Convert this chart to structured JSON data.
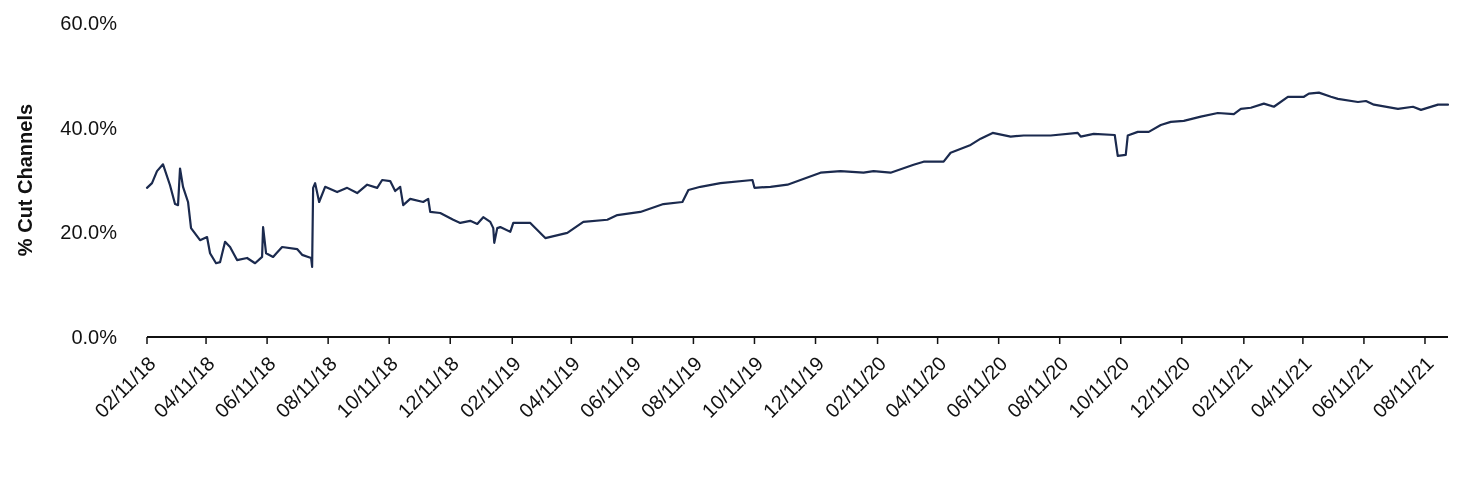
{
  "chart_data": {
    "type": "line",
    "ylabel": "% Cut Channels",
    "color": "#1b2a4e",
    "xlim": [
      "2018-02-11",
      "2021-09-03"
    ],
    "xticks": [
      {
        "value": "2018-02-11",
        "label": "02/11/18"
      },
      {
        "value": "2018-04-11",
        "label": "04/11/18"
      },
      {
        "value": "2018-06-11",
        "label": "06/11/18"
      },
      {
        "value": "2018-08-11",
        "label": "08/11/18"
      },
      {
        "value": "2018-10-11",
        "label": "10/11/18"
      },
      {
        "value": "2018-12-11",
        "label": "12/11/18"
      },
      {
        "value": "2019-02-11",
        "label": "02/11/19"
      },
      {
        "value": "2019-04-11",
        "label": "04/11/19"
      },
      {
        "value": "2019-06-11",
        "label": "06/11/19"
      },
      {
        "value": "2019-08-11",
        "label": "08/11/19"
      },
      {
        "value": "2019-10-11",
        "label": "10/11/19"
      },
      {
        "value": "2019-12-11",
        "label": "12/11/19"
      },
      {
        "value": "2020-02-11",
        "label": "02/11/20"
      },
      {
        "value": "2020-04-11",
        "label": "04/11/20"
      },
      {
        "value": "2020-06-11",
        "label": "06/11/20"
      },
      {
        "value": "2020-08-11",
        "label": "08/11/20"
      },
      {
        "value": "2020-10-11",
        "label": "10/11/20"
      },
      {
        "value": "2020-12-11",
        "label": "12/11/20"
      },
      {
        "value": "2021-02-11",
        "label": "02/11/21"
      },
      {
        "value": "2021-04-11",
        "label": "04/11/21"
      },
      {
        "value": "2021-06-11",
        "label": "06/11/21"
      },
      {
        "value": "2021-08-11",
        "label": "08/11/21"
      }
    ],
    "ylim": [
      0,
      60
    ],
    "yticks": [
      {
        "value": 0,
        "label": "0.0%"
      },
      {
        "value": 20,
        "label": "20.0%"
      },
      {
        "value": 40,
        "label": "40.0%"
      },
      {
        "value": 60,
        "label": "60.0%"
      }
    ],
    "grid": false,
    "legend": false,
    "marker": "none",
    "line_style": "solid",
    "x": [
      "2018-02-11",
      "2018-02-16",
      "2018-02-21",
      "2018-02-27",
      "2018-03-06",
      "2018-03-11",
      "2018-03-14",
      "2018-03-16",
      "2018-03-19",
      "2018-03-24",
      "2018-03-27",
      "2018-04-05",
      "2018-04-12",
      "2018-04-15",
      "2018-04-21",
      "2018-04-25",
      "2018-04-30",
      "2018-05-05",
      "2018-05-12",
      "2018-05-22",
      "2018-05-30",
      "2018-06-06",
      "2018-06-07",
      "2018-06-10",
      "2018-06-17",
      "2018-06-26",
      "2018-07-11",
      "2018-07-16",
      "2018-07-25",
      "2018-07-26",
      "2018-07-27",
      "2018-07-29",
      "2018-08-02",
      "2018-08-08",
      "2018-08-20",
      "2018-08-30",
      "2018-09-09",
      "2018-09-19",
      "2018-09-29",
      "2018-10-04",
      "2018-10-12",
      "2018-10-17",
      "2018-10-22",
      "2018-10-25",
      "2018-11-01",
      "2018-11-14",
      "2018-11-19",
      "2018-11-21",
      "2018-12-01",
      "2018-12-14",
      "2018-12-21",
      "2018-12-31",
      "2019-01-07",
      "2019-01-13",
      "2019-01-20",
      "2019-01-23",
      "2019-01-24",
      "2019-01-27",
      "2019-01-30",
      "2019-02-09",
      "2019-02-12",
      "2019-03-01",
      "2019-03-16",
      "2019-04-07",
      "2019-04-23",
      "2019-05-17",
      "2019-05-27",
      "2019-06-19",
      "2019-07-12",
      "2019-07-31",
      "2019-08-06",
      "2019-08-18",
      "2019-09-07",
      "2019-10-09",
      "2019-10-11",
      "2019-10-27",
      "2019-11-13",
      "2019-11-26",
      "2019-12-16",
      "2020-01-05",
      "2020-01-28",
      "2020-02-07",
      "2020-02-24",
      "2020-03-18",
      "2020-03-28",
      "2020-04-17",
      "2020-04-24",
      "2020-05-14",
      "2020-05-24",
      "2020-06-05",
      "2020-06-23",
      "2020-07-06",
      "2020-08-02",
      "2020-08-29",
      "2020-09-01",
      "2020-09-14",
      "2020-10-05",
      "2020-10-08",
      "2020-10-16",
      "2020-10-18",
      "2020-10-28",
      "2020-11-08",
      "2020-11-20",
      "2020-11-30",
      "2020-12-13",
      "2020-12-30",
      "2021-01-16",
      "2021-02-01",
      "2021-02-08",
      "2021-02-18",
      "2021-03-03",
      "2021-03-13",
      "2021-03-27",
      "2021-04-12",
      "2021-04-17",
      "2021-04-27",
      "2021-05-09",
      "2021-05-16",
      "2021-06-05",
      "2021-06-13",
      "2021-06-21",
      "2021-07-15",
      "2021-07-30",
      "2021-08-07",
      "2021-08-24",
      "2021-09-03"
    ],
    "values": [
      28.5,
      29.4,
      31.7,
      33.0,
      29.0,
      25.4,
      25.2,
      32.2,
      28.7,
      25.8,
      20.8,
      18.5,
      19.1,
      16.0,
      14.1,
      14.3,
      18.2,
      17.2,
      14.7,
      15.1,
      14.1,
      15.3,
      21.0,
      16.0,
      15.3,
      17.2,
      16.8,
      15.7,
      15.1,
      13.4,
      28.5,
      29.4,
      25.8,
      28.7,
      27.7,
      28.5,
      27.5,
      29.1,
      28.5,
      30.0,
      29.8,
      27.9,
      28.7,
      25.2,
      26.4,
      25.8,
      26.4,
      23.9,
      23.7,
      22.4,
      21.8,
      22.2,
      21.6,
      22.9,
      22.0,
      20.8,
      18.0,
      20.8,
      21.0,
      20.1,
      21.8,
      21.8,
      18.9,
      19.9,
      22.0,
      22.4,
      23.3,
      23.9,
      25.4,
      25.8,
      28.1,
      28.7,
      29.4,
      30.0,
      28.5,
      28.7,
      29.1,
      30.0,
      31.4,
      31.7,
      31.4,
      31.7,
      31.4,
      32.9,
      33.5,
      33.5,
      35.2,
      36.7,
      37.9,
      39.0,
      38.3,
      38.5,
      38.5,
      39.0,
      38.3,
      38.8,
      38.6,
      34.6,
      34.8,
      38.5,
      39.2,
      39.2,
      40.5,
      41.1,
      41.3,
      42.1,
      42.8,
      42.6,
      43.6,
      43.8,
      44.6,
      44.0,
      45.9,
      45.9,
      46.5,
      46.7,
      45.9,
      45.5,
      44.9,
      45.1,
      44.4,
      43.6,
      44.0,
      43.4,
      44.4,
      44.4
    ]
  }
}
